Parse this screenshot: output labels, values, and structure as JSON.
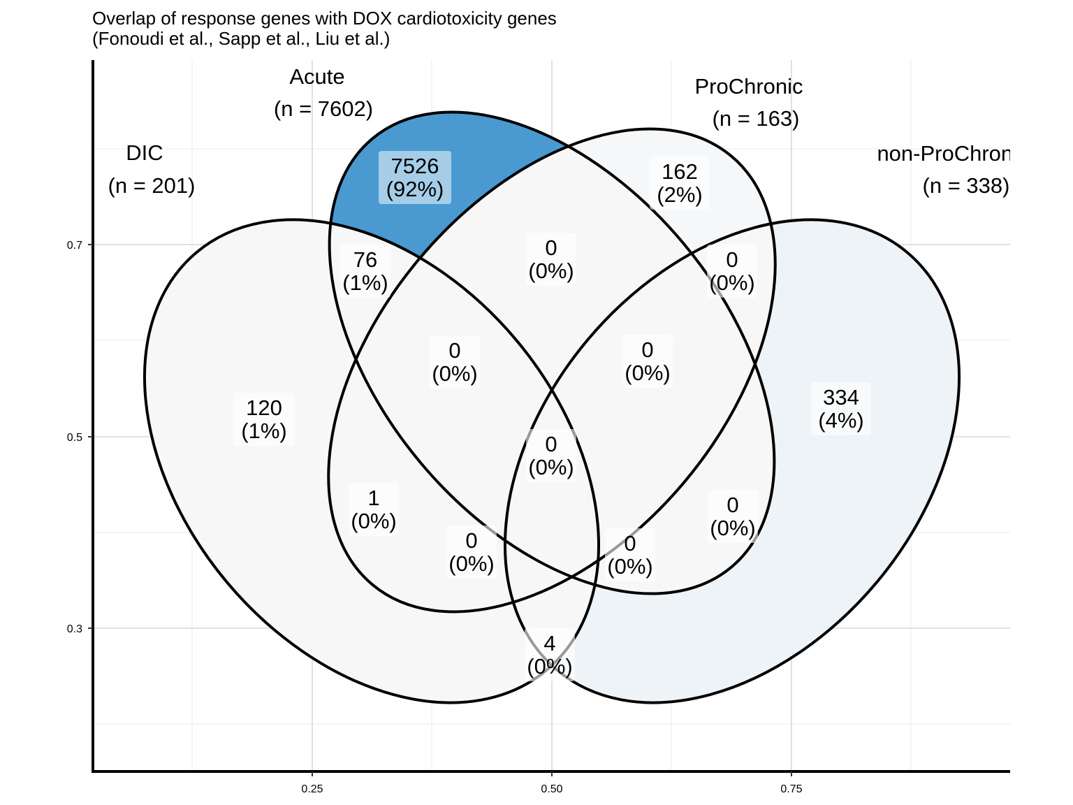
{
  "chart_data": {
    "type": "venn",
    "title": "Overlap of response genes with DOX cardiotoxicity genes",
    "subtitle": "(Fonoudi et al., Sapp et al., Liu et al.)",
    "sets": [
      {
        "name": "DIC",
        "size_label": "(n = 201)",
        "n": 201
      },
      {
        "name": "Acute",
        "size_label": "(n = 7602)",
        "n": 7602
      },
      {
        "name": "ProChronic",
        "size_label": "(n = 163)",
        "n": 163
      },
      {
        "name": "non-ProChronic",
        "size_label": "(n = 338)",
        "n": 338
      }
    ],
    "regions": [
      {
        "sets": [
          "DIC"
        ],
        "count": "120",
        "percent": "(1%)",
        "fill": "#f7f7f8"
      },
      {
        "sets": [
          "Acute"
        ],
        "count": "7526",
        "percent": "(92%)",
        "fill": "#4a9ad1"
      },
      {
        "sets": [
          "ProChronic"
        ],
        "count": "162",
        "percent": "(2%)",
        "fill": "#f5f7f9"
      },
      {
        "sets": [
          "non-ProChronic"
        ],
        "count": "334",
        "percent": "(4%)",
        "fill": "#eef3f7"
      },
      {
        "sets": [
          "DIC",
          "Acute"
        ],
        "count": "76",
        "percent": "(1%)",
        "fill": "#f7f7f8"
      },
      {
        "sets": [
          "Acute",
          "ProChronic"
        ],
        "count": "0",
        "percent": "(0%)",
        "fill": "#f7f7f8"
      },
      {
        "sets": [
          "ProChronic",
          "non-ProChronic"
        ],
        "count": "0",
        "percent": "(0%)",
        "fill": "#f7f7f8"
      },
      {
        "sets": [
          "DIC",
          "Acute",
          "ProChronic"
        ],
        "count": "0",
        "percent": "(0%)",
        "fill": "#f7f7f8"
      },
      {
        "sets": [
          "Acute",
          "ProChronic",
          "non-ProChronic"
        ],
        "count": "0",
        "percent": "(0%)",
        "fill": "#f7f7f8"
      },
      {
        "sets": [
          "DIC",
          "Acute",
          "ProChronic",
          "non-ProChronic"
        ],
        "count": "0",
        "percent": "(0%)",
        "fill": "#f7f7f8"
      },
      {
        "sets": [
          "DIC",
          "ProChronic"
        ],
        "count": "1",
        "percent": "(0%)",
        "fill": "#f7f7f8"
      },
      {
        "sets": [
          "Acute",
          "non-ProChronic"
        ],
        "count": "0",
        "percent": "(0%)",
        "fill": "#f7f7f8"
      },
      {
        "sets": [
          "DIC",
          "ProChronic",
          "non-ProChronic"
        ],
        "count": "0",
        "percent": "(0%)",
        "fill": "#f7f7f8"
      },
      {
        "sets": [
          "DIC",
          "Acute",
          "non-ProChronic"
        ],
        "count": "0",
        "percent": "(0%)",
        "fill": "#f7f7f8"
      },
      {
        "sets": [
          "DIC",
          "non-ProChronic"
        ],
        "count": "4",
        "percent": "(0%)",
        "fill": "#f7f7f8"
      }
    ],
    "x_ticks": [
      "0.25",
      "0.50",
      "0.75"
    ],
    "y_ticks": [
      "0.7",
      "0.5",
      "0.3"
    ],
    "xlim": [
      0.025,
      0.975
    ],
    "ylim": [
      0.155,
      0.847
    ],
    "grid": true,
    "colors": {
      "acute_fill": "#4a9ad1",
      "dic_fill": "#f7f7f8",
      "prochronic_fill": "#f5f7f9",
      "nonprochronic_fill": "#eef3f7",
      "outline": "#000000",
      "label_box": "#ffffff"
    }
  }
}
